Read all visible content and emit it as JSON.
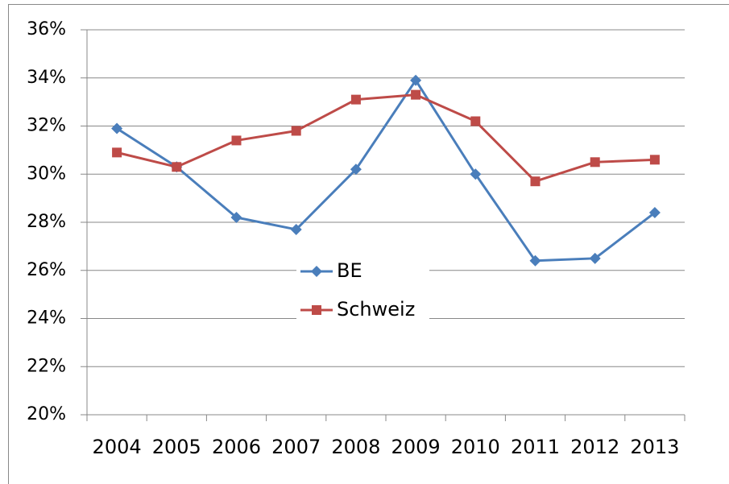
{
  "chart_data": {
    "type": "line",
    "categories": [
      "2004",
      "2005",
      "2006",
      "2007",
      "2008",
      "2009",
      "2010",
      "2011",
      "2012",
      "2013"
    ],
    "series": [
      {
        "name": "BE",
        "color": "#4a7ebb",
        "marker": "diamond",
        "values": [
          31.9,
          30.3,
          28.2,
          27.7,
          30.2,
          33.9,
          30.0,
          26.4,
          26.5,
          28.4
        ]
      },
      {
        "name": "Schweiz",
        "color": "#be4b48",
        "marker": "square",
        "values": [
          30.9,
          30.3,
          31.4,
          31.8,
          33.1,
          33.3,
          32.2,
          29.7,
          30.5,
          30.6
        ]
      }
    ],
    "ylim": [
      20,
      36
    ],
    "yticks": [
      {
        "value": 20,
        "label": "20%"
      },
      {
        "value": 22,
        "label": "22%"
      },
      {
        "value": 24,
        "label": "24%"
      },
      {
        "value": 26,
        "label": "26%"
      },
      {
        "value": 28,
        "label": "28%"
      },
      {
        "value": 30,
        "label": "30%"
      },
      {
        "value": 32,
        "label": "32%"
      },
      {
        "value": 34,
        "label": "34%"
      },
      {
        "value": 36,
        "label": "36%"
      }
    ],
    "grid": true
  }
}
